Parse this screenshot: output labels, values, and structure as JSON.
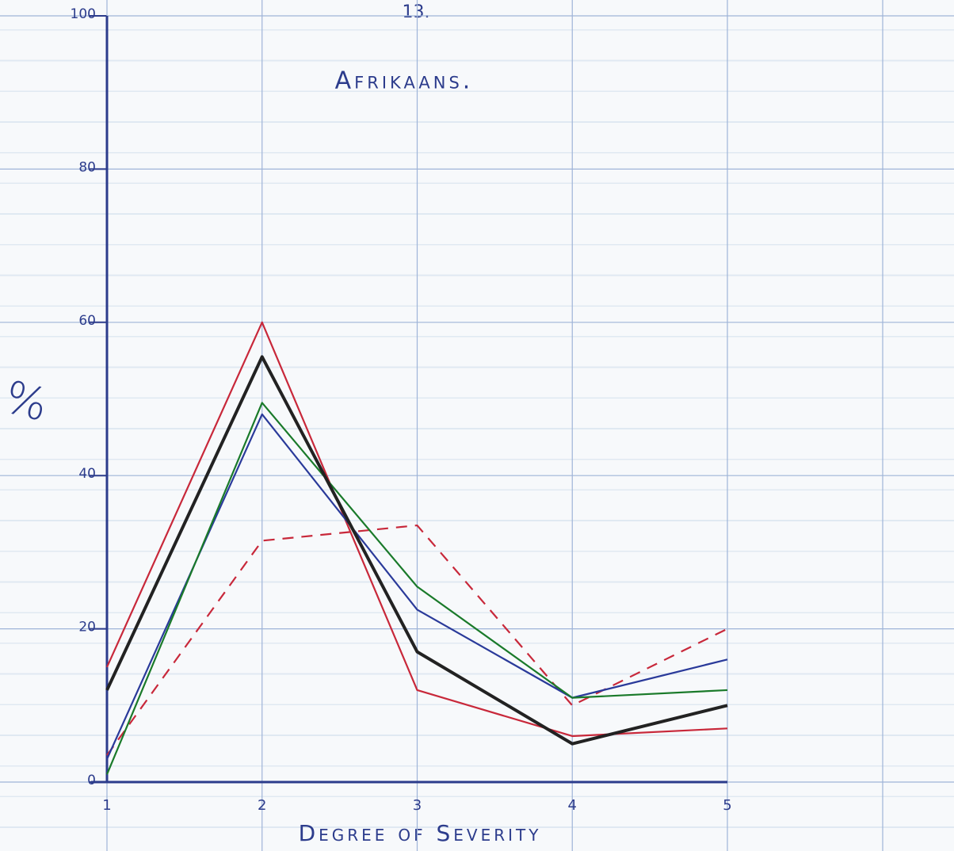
{
  "chart_data": {
    "type": "line",
    "page_number": "13.",
    "title": "Afrikaans.",
    "x_label": "Degree of Severity",
    "y_label": "%",
    "x": [
      1,
      2,
      3,
      4,
      5
    ],
    "xlim": [
      1,
      5
    ],
    "xticks": [
      1,
      2,
      3,
      4,
      5
    ],
    "ylim": [
      0,
      100
    ],
    "yticks": [
      0,
      20,
      40,
      60,
      80,
      100
    ],
    "grid": true,
    "series": [
      {
        "color": "#c8283a",
        "style": "solid",
        "values": [
          15,
          60,
          12,
          6,
          7
        ]
      },
      {
        "color": "#c8283a",
        "style": "dashed",
        "values": [
          3.5,
          31.5,
          33.5,
          10,
          20
        ]
      },
      {
        "color": "#2a3a9a",
        "style": "solid",
        "values": [
          3,
          48,
          22.5,
          11,
          16
        ]
      },
      {
        "color": "#1a7a2a",
        "style": "solid",
        "values": [
          1,
          49.5,
          25.5,
          11,
          12
        ]
      },
      {
        "color": "#222222",
        "style": "solid",
        "values": [
          12,
          55.5,
          17,
          5,
          10
        ]
      }
    ]
  }
}
